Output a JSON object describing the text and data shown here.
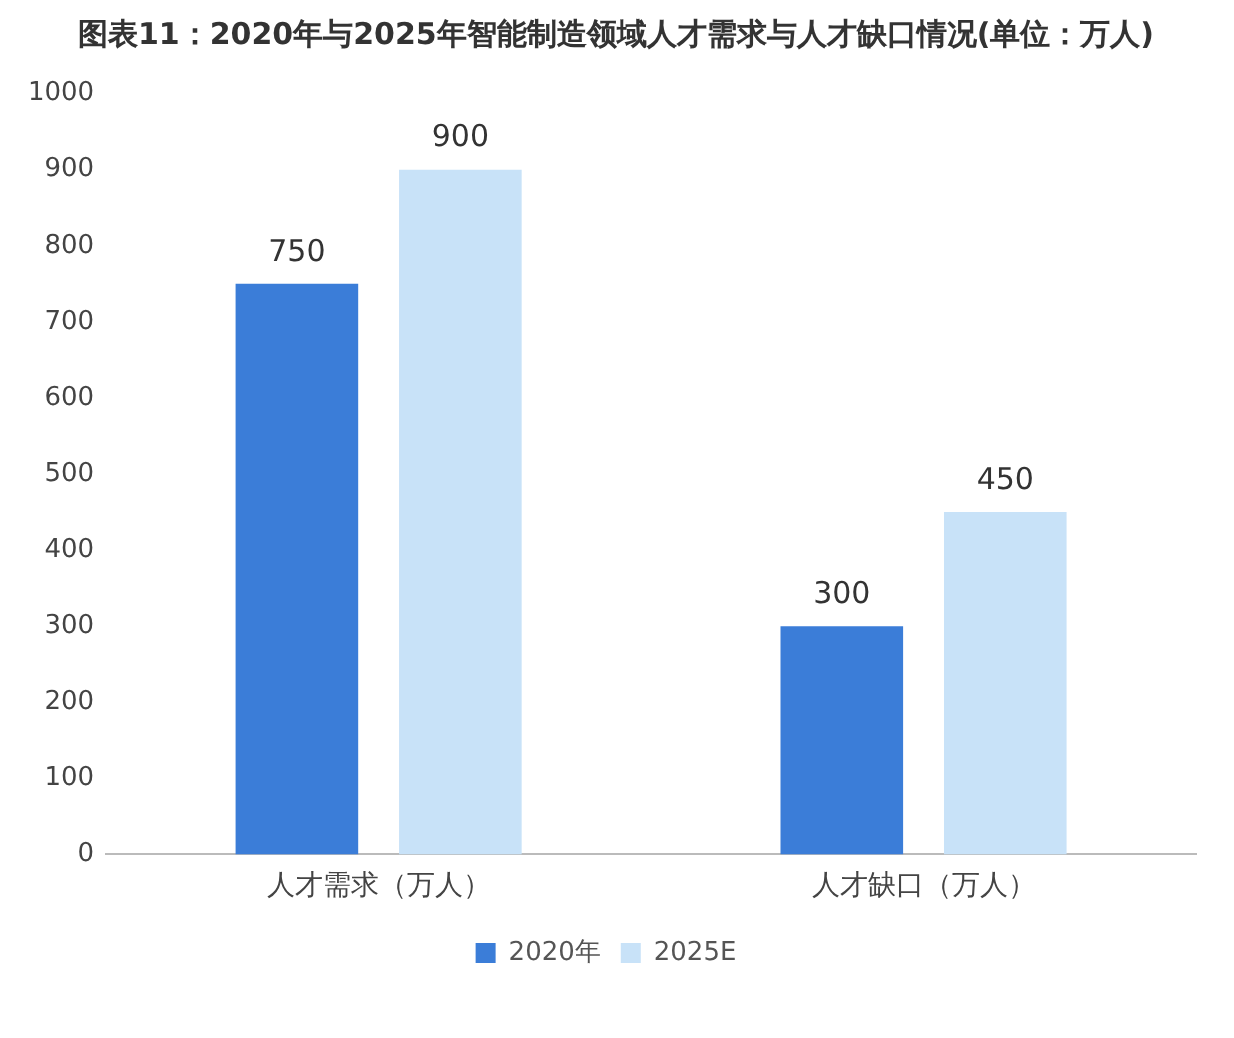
{
  "chart_data": {
    "type": "bar",
    "title": "图表11：2020年与2025年智能制造领域人才需求与人才缺口情况(单位：万人)",
    "categories": [
      "人才需求（万人）",
      "人才缺口（万人）"
    ],
    "series": [
      {
        "name": "2020年",
        "color": "#3b7dd8",
        "values": [
          750,
          300
        ]
      },
      {
        "name": "2025E",
        "color": "#c8e2f8",
        "values": [
          900,
          450
        ]
      }
    ],
    "ylim": [
      0,
      1000
    ],
    "yticks": [
      0,
      100,
      200,
      300,
      400,
      500,
      600,
      700,
      800,
      900,
      1000
    ],
    "grid": false,
    "legend": "bottom",
    "data_labels": true
  }
}
